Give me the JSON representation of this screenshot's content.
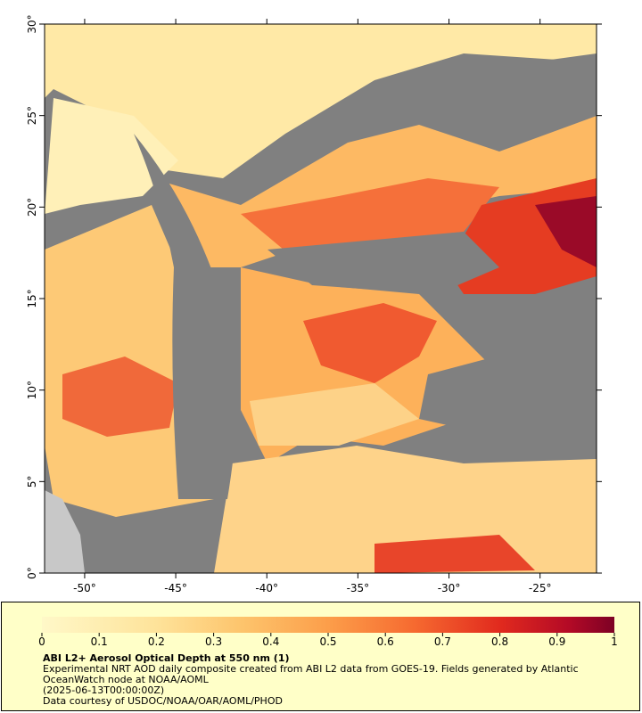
{
  "map": {
    "lon_range": [
      -52.2,
      -21.9
    ],
    "lat_range": [
      0,
      30
    ],
    "lon_ticks": [
      {
        "value": -50,
        "label": "-50°"
      },
      {
        "value": -45,
        "label": "-45°"
      },
      {
        "value": -40,
        "label": "-40°"
      },
      {
        "value": -35,
        "label": "-35°"
      },
      {
        "value": -30,
        "label": "-30°"
      },
      {
        "value": -25,
        "label": "-25°"
      }
    ],
    "lat_ticks": [
      {
        "value": 0,
        "label": "0°"
      },
      {
        "value": 5,
        "label": "5°"
      },
      {
        "value": 10,
        "label": "10°"
      },
      {
        "value": 15,
        "label": "15°"
      },
      {
        "value": 20,
        "label": "20°"
      },
      {
        "value": 25,
        "label": "25°"
      },
      {
        "value": 30,
        "label": "30°"
      }
    ]
  },
  "colorbar": {
    "range": [
      0,
      1
    ],
    "ticks": [
      0,
      0.1,
      0.2,
      0.3,
      0.4,
      0.5,
      0.6,
      0.7,
      0.8,
      0.9,
      1
    ]
  },
  "caption": {
    "title": "ABI L2+ Aerosol Optical Depth at 550 nm (1)",
    "description": "Experimental NRT AOD daily composite created from ABI L2 data from GOES-19. Fields generated by Atlantic OceanWatch node at NOAA/AOML",
    "timestamp": "(2025-06-13T00:00:00Z)",
    "credit": "Data courtesy of USDOC/NOAA/OAR/AOML/PHOD"
  }
}
